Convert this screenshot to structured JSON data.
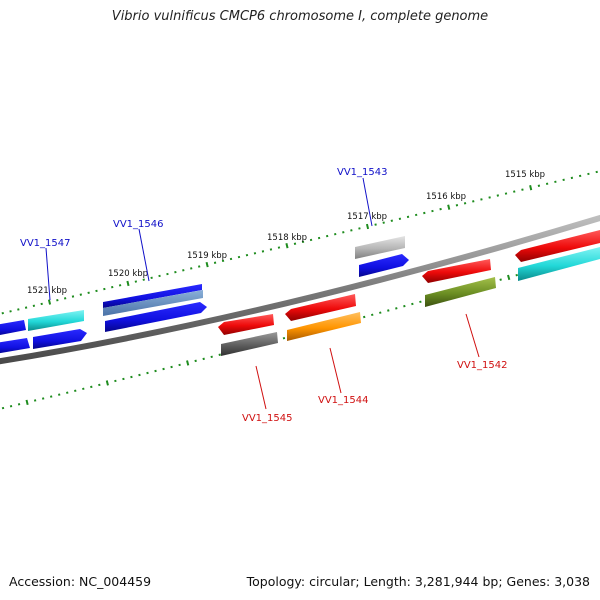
{
  "title": "Vibrio vulnificus CMCP6 chromosome I, complete genome",
  "footer": {
    "accession": "Accession: NC_004459",
    "summary": "Topology: circular; Length: 3,281,944 bp; Genes: 3,038"
  },
  "kbp_labels": [
    "1515 kbp",
    "1516 kbp",
    "1517 kbp",
    "1518 kbp",
    "1519 kbp",
    "1520 kbp",
    "1521 kbp"
  ],
  "gene_labels_forward": [
    "VV1_1547",
    "VV1_1546",
    "VV1_1543"
  ],
  "gene_labels_reverse": [
    "VV1_1545",
    "VV1_1544",
    "VV1_1542"
  ],
  "colors": {
    "forward_label": "#1010c8",
    "reverse_label": "#d01010",
    "ticks": "#1e8c1e",
    "backbone": "#7a7a7a"
  }
}
